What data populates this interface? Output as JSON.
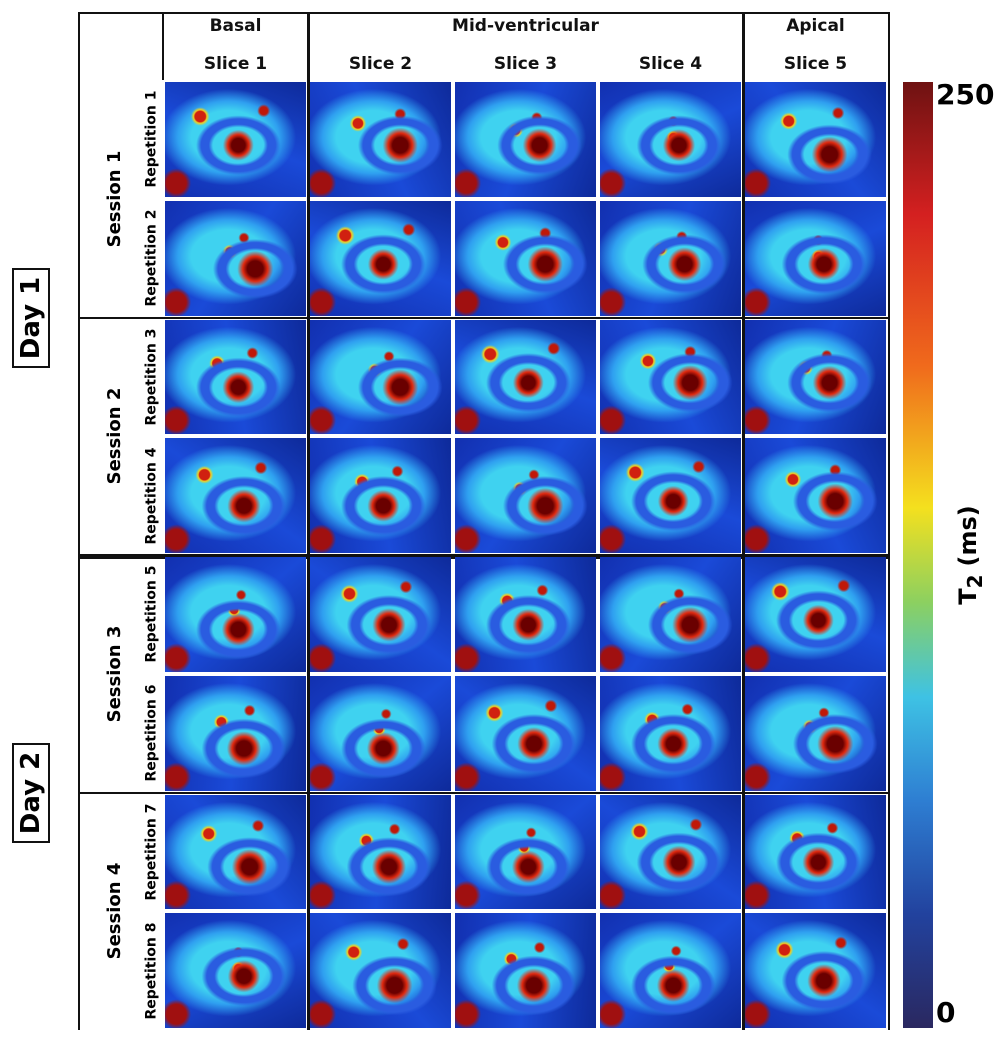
{
  "columns": {
    "groups": [
      {
        "label": "Basal",
        "span": 1
      },
      {
        "label": "Mid-ventricular",
        "span": 3
      },
      {
        "label": "Apical",
        "span": 1
      }
    ],
    "slices": [
      "Slice 1",
      "Slice 2",
      "Slice 3",
      "Slice 4",
      "Slice 5"
    ]
  },
  "days": [
    {
      "label": "Day 1",
      "sessions": [
        {
          "label": "Session 1",
          "repetitions": [
            "Repetition 1",
            "Repetition 2"
          ]
        },
        {
          "label": "Session 2",
          "repetitions": [
            "Repetition 3",
            "Repetition 4"
          ]
        }
      ]
    },
    {
      "label": "Day 2",
      "sessions": [
        {
          "label": "Session 3",
          "repetitions": [
            "Repetition 5",
            "Repetition 6"
          ]
        },
        {
          "label": "Session 4",
          "repetitions": [
            "Repetition 7",
            "Repetition 8"
          ]
        }
      ]
    }
  ],
  "colorbar": {
    "max": 250,
    "min": 0,
    "label": "T",
    "subscript": "2",
    "unit": "(ms)"
  }
}
